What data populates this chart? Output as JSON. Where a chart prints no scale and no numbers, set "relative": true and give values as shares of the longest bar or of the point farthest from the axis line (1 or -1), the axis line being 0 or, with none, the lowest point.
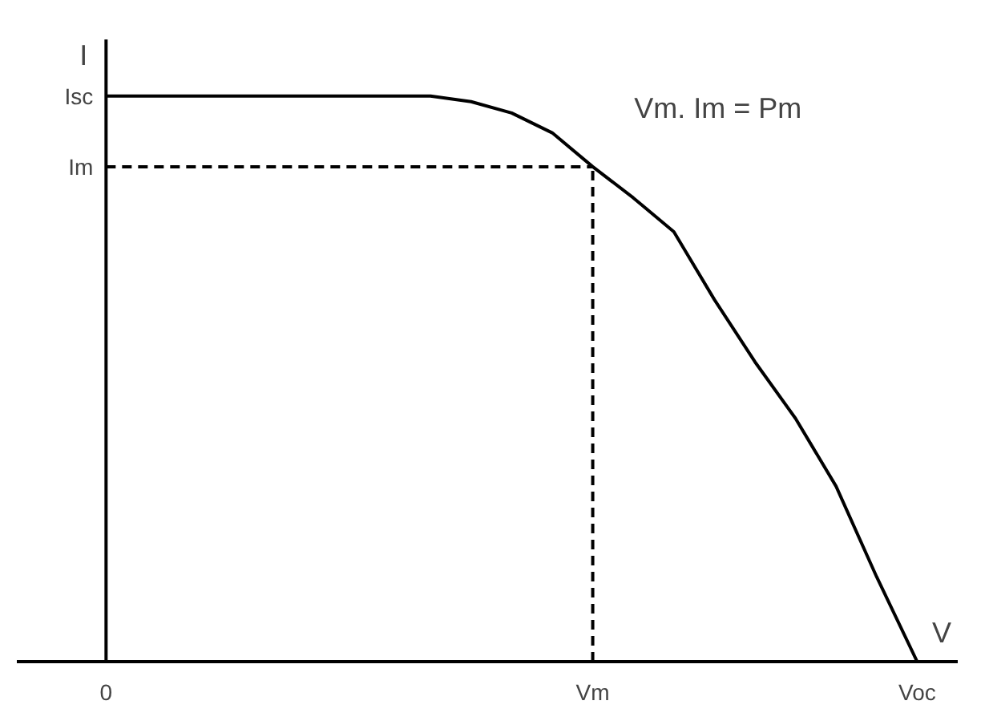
{
  "chart_data": {
    "type": "line",
    "relative": true,
    "xlabel": "V",
    "ylabel": "I",
    "categories": [
      "0",
      null,
      null,
      null,
      null,
      null,
      null,
      null,
      null,
      null,
      null,
      null,
      "Vm",
      null,
      null,
      null,
      null,
      null,
      null,
      null,
      "Voc"
    ],
    "grid": false,
    "marker": "none",
    "line_style": "solid",
    "series": [
      {
        "color": "#000000",
        "values": [
          1,
          1,
          1,
          1,
          1,
          1,
          1,
          1,
          1,
          0.99,
          0.97,
          0.935,
          0.875,
          0.82,
          0.76,
          0.64,
          0.53,
          0.43,
          0.31,
          0.15,
          0
        ]
      }
    ],
    "ref_lines": [
      {
        "axis": "y",
        "value": 0.875,
        "label": "Im",
        "line_style": "dashed",
        "color": "#000000"
      },
      {
        "axis": "x",
        "value": "Vm",
        "line_style": "dashed",
        "color": "#000000"
      }
    ],
    "annotations": [
      "Isc",
      "Vm. Im = Pm"
    ]
  }
}
